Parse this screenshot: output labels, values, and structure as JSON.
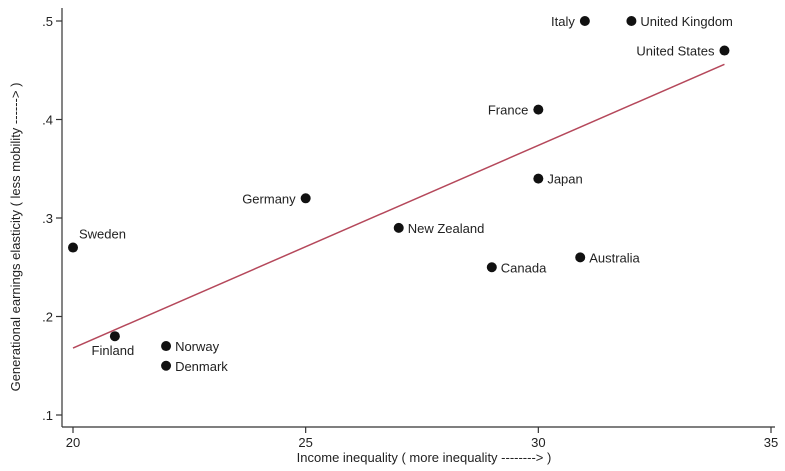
{
  "chart_data": {
    "type": "scatter",
    "xlabel": "Income inequality ( more inequality --------> )",
    "ylabel": "Generational earnings elasticity ( less mobility ------> )",
    "xlim": [
      19.5,
      35
    ],
    "ylim": [
      0.09,
      0.51
    ],
    "x_ticks": [
      20,
      25,
      30,
      35
    ],
    "x_tick_labels": [
      "20",
      "25",
      "30",
      "35"
    ],
    "y_ticks": [
      0.1,
      0.2,
      0.3,
      0.4,
      0.5
    ],
    "y_tick_labels": [
      ".1",
      ".2",
      ".3",
      ".4",
      ".5"
    ],
    "grid": false,
    "points": [
      {
        "label": "Italy",
        "x": 31.0,
        "y": 0.5,
        "label_pos": "left"
      },
      {
        "label": "United Kingdom",
        "x": 32.0,
        "y": 0.5,
        "label_pos": "right"
      },
      {
        "label": "United States",
        "x": 34.0,
        "y": 0.47,
        "label_pos": "left"
      },
      {
        "label": "France",
        "x": 30.0,
        "y": 0.41,
        "label_pos": "left"
      },
      {
        "label": "Japan",
        "x": 30.0,
        "y": 0.34,
        "label_pos": "right"
      },
      {
        "label": "Germany",
        "x": 25.0,
        "y": 0.32,
        "label_pos": "left"
      },
      {
        "label": "New Zealand",
        "x": 27.0,
        "y": 0.29,
        "label_pos": "right"
      },
      {
        "label": "Sweden",
        "x": 20.0,
        "y": 0.27,
        "label_pos": "above-right"
      },
      {
        "label": "Canada",
        "x": 29.0,
        "y": 0.25,
        "label_pos": "right"
      },
      {
        "label": "Australia",
        "x": 30.9,
        "y": 0.26,
        "label_pos": "right"
      },
      {
        "label": "Finland",
        "x": 20.9,
        "y": 0.18,
        "label_pos": "below-left"
      },
      {
        "label": "Norway",
        "x": 22.0,
        "y": 0.17,
        "label_pos": "right"
      },
      {
        "label": "Denmark",
        "x": 22.0,
        "y": 0.15,
        "label_pos": "right"
      }
    ],
    "fit_line": {
      "x": [
        20,
        34
      ],
      "y": [
        0.168,
        0.456
      ]
    },
    "colors": {
      "point": "#111111",
      "fit_line": "#b5485b",
      "axis": "#333333",
      "text": "#222222"
    }
  }
}
